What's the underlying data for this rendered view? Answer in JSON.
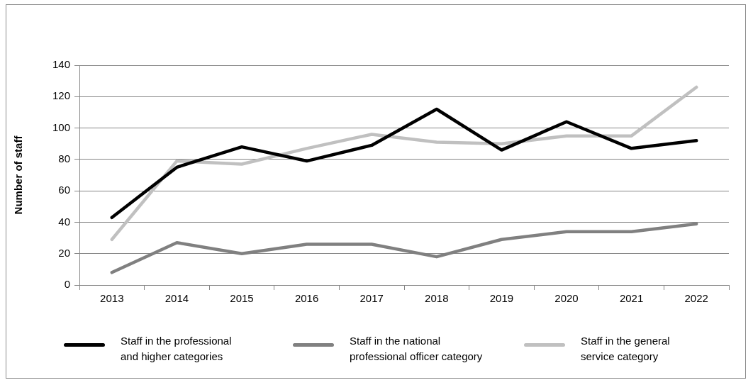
{
  "chart_data": {
    "type": "line",
    "ylabel": "Number of staff",
    "categories": [
      "2013",
      "2014",
      "2015",
      "2016",
      "2017",
      "2018",
      "2019",
      "2020",
      "2021",
      "2022"
    ],
    "series": [
      {
        "name": "Staff in the professional and higher categories",
        "color": "#000000",
        "values": [
          43,
          75,
          88,
          79,
          89,
          112,
          86,
          104,
          87,
          92
        ]
      },
      {
        "name": "Staff in the national professional officer category",
        "color": "#808080",
        "values": [
          8,
          27,
          20,
          26,
          26,
          18,
          29,
          34,
          34,
          39
        ]
      },
      {
        "name": "Staff in the general service category",
        "color": "#c0c0c0",
        "values": [
          29,
          79,
          77,
          87,
          96,
          91,
          90,
          95,
          95,
          126
        ]
      }
    ],
    "ylim": [
      0,
      140
    ],
    "yticks": [
      0,
      20,
      40,
      60,
      80,
      100,
      120,
      140
    ],
    "grid": "y",
    "legend": "bottom",
    "marker": "none",
    "line_style": "solid"
  }
}
